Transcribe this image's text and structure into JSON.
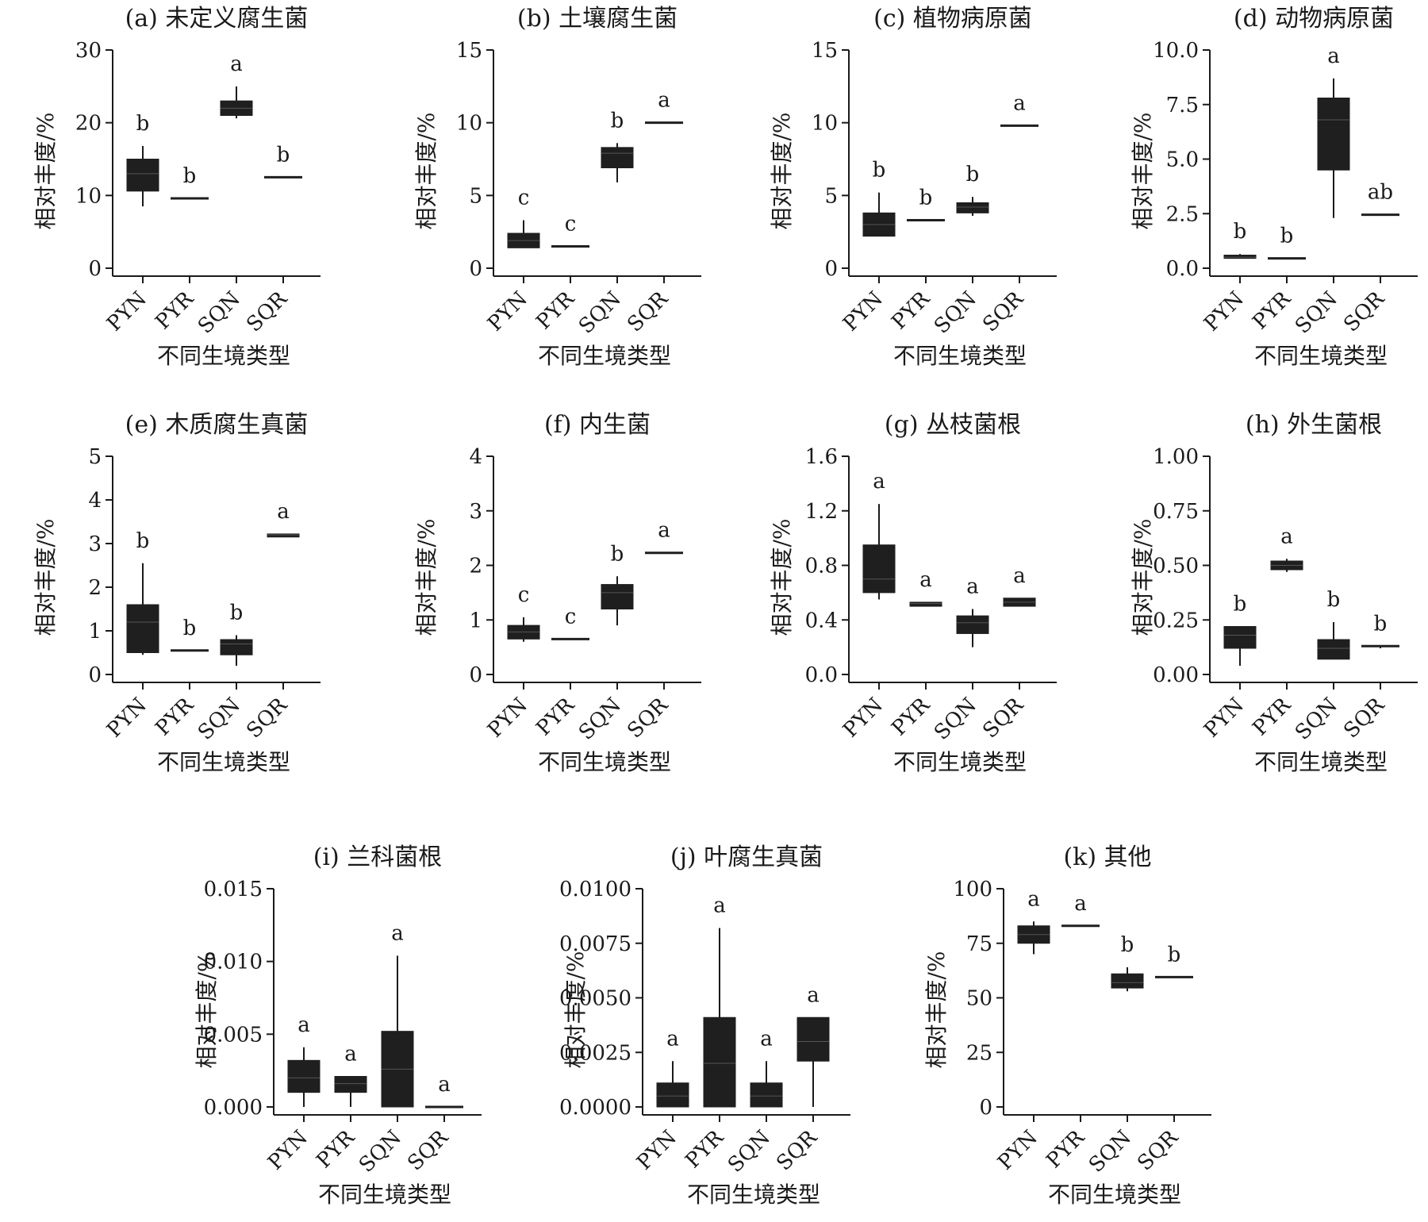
{
  "figure": {
    "colors": {
      "box_fill": "#1f1f1f",
      "axis": "#1a1a1a",
      "background": "#ffffff"
    }
  },
  "chart_data": [
    {
      "type": "box",
      "title": "(a) 未定义腐生菌",
      "xlabel": "不同生境类型",
      "ylabel": "相对丰度/%",
      "categories": [
        "PYN",
        "PYR",
        "SQN",
        "SQR"
      ],
      "ylim": [
        0,
        30
      ],
      "yticks": [
        0,
        10,
        20,
        30
      ],
      "ytick_labels": [
        "0",
        "10",
        "20",
        "30"
      ],
      "boxes": [
        {
          "min": 8.5,
          "q1": 10.6,
          "median": 13.0,
          "q3": 15.0,
          "max": 16.8
        },
        {
          "min": 9.6,
          "q1": 9.6,
          "median": 9.6,
          "q3": 9.6,
          "max": 9.6
        },
        {
          "min": 20.6,
          "q1": 21.0,
          "median": 22.0,
          "q3": 23.0,
          "max": 25.0
        },
        {
          "min": 12.5,
          "q1": 12.5,
          "median": 12.5,
          "q3": 12.5,
          "max": 12.5
        }
      ],
      "letters": [
        "b",
        "b",
        "a",
        "b"
      ]
    },
    {
      "type": "box",
      "title": "(b) 土壤腐生菌",
      "xlabel": "不同生境类型",
      "ylabel": "相对丰度/%",
      "categories": [
        "PYN",
        "PYR",
        "SQN",
        "SQR"
      ],
      "ylim": [
        0,
        15
      ],
      "yticks": [
        0,
        5,
        10,
        15
      ],
      "ytick_labels": [
        "0",
        "5",
        "10",
        "15"
      ],
      "boxes": [
        {
          "min": 1.4,
          "q1": 1.4,
          "median": 1.9,
          "q3": 2.4,
          "max": 3.3
        },
        {
          "min": 1.5,
          "q1": 1.5,
          "median": 1.5,
          "q3": 1.5,
          "max": 1.5
        },
        {
          "min": 5.9,
          "q1": 6.9,
          "median": 7.9,
          "q3": 8.3,
          "max": 8.6
        },
        {
          "min": 10.0,
          "q1": 10.0,
          "median": 10.0,
          "q3": 10.0,
          "max": 10.0
        }
      ],
      "letters": [
        "c",
        "c",
        "b",
        "a"
      ]
    },
    {
      "type": "box",
      "title": "(c) 植物病原菌",
      "xlabel": "不同生境类型",
      "ylabel": "相对丰度/%",
      "categories": [
        "PYN",
        "PYR",
        "SQN",
        "SQR"
      ],
      "ylim": [
        0,
        15
      ],
      "yticks": [
        0,
        5,
        10,
        15
      ],
      "ytick_labels": [
        "0",
        "5",
        "10",
        "15"
      ],
      "boxes": [
        {
          "min": 2.2,
          "q1": 2.2,
          "median": 3.0,
          "q3": 3.8,
          "max": 5.2
        },
        {
          "min": 3.3,
          "q1": 3.3,
          "median": 3.3,
          "q3": 3.3,
          "max": 3.3
        },
        {
          "min": 3.6,
          "q1": 3.8,
          "median": 4.2,
          "q3": 4.5,
          "max": 4.9
        },
        {
          "min": 9.8,
          "q1": 9.8,
          "median": 9.8,
          "q3": 9.8,
          "max": 9.8
        }
      ],
      "letters": [
        "b",
        "b",
        "b",
        "a"
      ]
    },
    {
      "type": "box",
      "title": "(d) 动物病原菌",
      "xlabel": "不同生境类型",
      "ylabel": "相对丰度/%",
      "categories": [
        "PYN",
        "PYR",
        "SQN",
        "SQR"
      ],
      "ylim": [
        0,
        10
      ],
      "yticks": [
        0,
        2.5,
        5,
        7.5,
        10
      ],
      "ytick_labels": [
        "0.0",
        "2.5",
        "5.0",
        "7.5",
        "10.0"
      ],
      "boxes": [
        {
          "min": 0.45,
          "q1": 0.45,
          "median": 0.5,
          "q3": 0.6,
          "max": 0.65
        },
        {
          "min": 0.45,
          "q1": 0.45,
          "median": 0.45,
          "q3": 0.45,
          "max": 0.45
        },
        {
          "min": 2.3,
          "q1": 4.5,
          "median": 6.8,
          "q3": 7.8,
          "max": 8.7
        },
        {
          "min": 2.45,
          "q1": 2.45,
          "median": 2.45,
          "q3": 2.45,
          "max": 2.45
        }
      ],
      "letters": [
        "b",
        "b",
        "a",
        "ab"
      ]
    },
    {
      "type": "box",
      "title": "(e) 木质腐生真菌",
      "xlabel": "不同生境类型",
      "ylabel": "相对丰度/%",
      "categories": [
        "PYN",
        "PYR",
        "SQN",
        "SQR"
      ],
      "ylim": [
        0,
        5
      ],
      "yticks": [
        0,
        1,
        2,
        3,
        4,
        5
      ],
      "ytick_labels": [
        "0",
        "1",
        "2",
        "3",
        "4",
        "5"
      ],
      "boxes": [
        {
          "min": 0.45,
          "q1": 0.5,
          "median": 1.2,
          "q3": 1.6,
          "max": 2.55
        },
        {
          "min": 0.55,
          "q1": 0.55,
          "median": 0.55,
          "q3": 0.55,
          "max": 0.55
        },
        {
          "min": 0.2,
          "q1": 0.45,
          "median": 0.7,
          "q3": 0.8,
          "max": 0.9
        },
        {
          "min": 3.15,
          "q1": 3.15,
          "median": 3.2,
          "q3": 3.22,
          "max": 3.22
        }
      ],
      "letters": [
        "b",
        "b",
        "b",
        "a"
      ]
    },
    {
      "type": "box",
      "title": "(f) 内生菌",
      "xlabel": "不同生境类型",
      "ylabel": "相对丰度/%",
      "categories": [
        "PYN",
        "PYR",
        "SQN",
        "SQR"
      ],
      "ylim": [
        0,
        4
      ],
      "yticks": [
        0,
        1,
        2,
        3,
        4
      ],
      "ytick_labels": [
        "0",
        "1",
        "2",
        "3",
        "4"
      ],
      "boxes": [
        {
          "min": 0.6,
          "q1": 0.65,
          "median": 0.78,
          "q3": 0.9,
          "max": 1.05
        },
        {
          "min": 0.65,
          "q1": 0.65,
          "median": 0.65,
          "q3": 0.65,
          "max": 0.65
        },
        {
          "min": 0.9,
          "q1": 1.2,
          "median": 1.5,
          "q3": 1.65,
          "max": 1.8
        },
        {
          "min": 2.23,
          "q1": 2.23,
          "median": 2.23,
          "q3": 2.23,
          "max": 2.23
        }
      ],
      "letters": [
        "c",
        "c",
        "b",
        "a"
      ]
    },
    {
      "type": "box",
      "title": "(g) 丛枝菌根",
      "xlabel": "不同生境类型",
      "ylabel": "相对丰度/%",
      "categories": [
        "PYN",
        "PYR",
        "SQN",
        "SQR"
      ],
      "ylim": [
        0,
        1.6
      ],
      "yticks": [
        0,
        0.4,
        0.8,
        1.2,
        1.6
      ],
      "ytick_labels": [
        "0.0",
        "0.4",
        "0.8",
        "1.2",
        "1.6"
      ],
      "boxes": [
        {
          "min": 0.55,
          "q1": 0.6,
          "median": 0.7,
          "q3": 0.95,
          "max": 1.25
        },
        {
          "min": 0.5,
          "q1": 0.5,
          "median": 0.52,
          "q3": 0.53,
          "max": 0.53
        },
        {
          "min": 0.2,
          "q1": 0.3,
          "median": 0.38,
          "q3": 0.43,
          "max": 0.48
        },
        {
          "min": 0.5,
          "q1": 0.5,
          "median": 0.53,
          "q3": 0.56,
          "max": 0.56
        }
      ],
      "letters": [
        "a",
        "a",
        "a",
        "a"
      ]
    },
    {
      "type": "box",
      "title": "(h) 外生菌根",
      "xlabel": "不同生境类型",
      "ylabel": "相对丰度/%",
      "categories": [
        "PYN",
        "PYR",
        "SQN",
        "SQR"
      ],
      "ylim": [
        0,
        1
      ],
      "yticks": [
        0,
        0.25,
        0.5,
        0.75,
        1
      ],
      "ytick_labels": [
        "0.00",
        "0.25",
        "0.50",
        "0.75",
        "1.00"
      ],
      "boxes": [
        {
          "min": 0.04,
          "q1": 0.12,
          "median": 0.18,
          "q3": 0.22,
          "max": 0.22
        },
        {
          "min": 0.47,
          "q1": 0.48,
          "median": 0.5,
          "q3": 0.52,
          "max": 0.53
        },
        {
          "min": 0.07,
          "q1": 0.07,
          "median": 0.12,
          "q3": 0.16,
          "max": 0.24
        },
        {
          "min": 0.12,
          "q1": 0.12,
          "median": 0.125,
          "q3": 0.13,
          "max": 0.13
        }
      ],
      "letters": [
        "b",
        "a",
        "b",
        "b"
      ]
    },
    {
      "type": "box",
      "title": "(i) 兰科菌根",
      "xlabel": "不同生境类型",
      "ylabel": "相对丰度/%",
      "categories": [
        "PYN",
        "PYR",
        "SQN",
        "SQR"
      ],
      "ylim": [
        0,
        0.015
      ],
      "yticks": [
        0,
        0.005,
        0.01,
        0.015
      ],
      "ytick_labels": [
        "0.000",
        "0.005",
        "0.010",
        "0.015"
      ],
      "boxes": [
        {
          "min": 0.0,
          "q1": 0.001,
          "median": 0.002,
          "q3": 0.0032,
          "max": 0.0041
        },
        {
          "min": 0.0,
          "q1": 0.001,
          "median": 0.0016,
          "q3": 0.0021,
          "max": 0.0021
        },
        {
          "min": 0.0,
          "q1": 0.0,
          "median": 0.0026,
          "q3": 0.0052,
          "max": 0.0104
        },
        {
          "min": 0.0,
          "q1": 0.0,
          "median": 0.0,
          "q3": 0.0,
          "max": 0.0
        }
      ],
      "letters": [
        "a",
        "a",
        "a",
        "a"
      ]
    },
    {
      "type": "box",
      "title": "(j) 叶腐生真菌",
      "xlabel": "不同生境类型",
      "ylabel": "相对丰度/%",
      "categories": [
        "PYN",
        "PYR",
        "SQN",
        "SQR"
      ],
      "ylim": [
        0,
        0.01
      ],
      "yticks": [
        0,
        0.0025,
        0.005,
        0.0075,
        0.01
      ],
      "ytick_labels": [
        "0.0000",
        "0.0025",
        "0.0050",
        "0.0075",
        "0.0100"
      ],
      "boxes": [
        {
          "min": 0.0,
          "q1": 0.0,
          "median": 0.0005,
          "q3": 0.0011,
          "max": 0.0021
        },
        {
          "min": 0.0,
          "q1": 0.0,
          "median": 0.002,
          "q3": 0.0041,
          "max": 0.0082
        },
        {
          "min": 0.0,
          "q1": 0.0,
          "median": 0.0005,
          "q3": 0.0011,
          "max": 0.0021
        },
        {
          "min": 0.0,
          "q1": 0.0021,
          "median": 0.003,
          "q3": 0.0041,
          "max": 0.0041
        }
      ],
      "letters": [
        "a",
        "a",
        "a",
        "a"
      ]
    },
    {
      "type": "box",
      "title": "(k) 其他",
      "xlabel": "不同生境类型",
      "ylabel": "相对丰度/%",
      "categories": [
        "PYN",
        "PYR",
        "SQN",
        "SQR"
      ],
      "ylim": [
        0,
        100
      ],
      "yticks": [
        0,
        25,
        50,
        75,
        100
      ],
      "ytick_labels": [
        "0",
        "25",
        "50",
        "75",
        "100"
      ],
      "boxes": [
        {
          "min": 70.0,
          "q1": 75.0,
          "median": 79.0,
          "q3": 83.0,
          "max": 85.0
        },
        {
          "min": 83.0,
          "q1": 83.0,
          "median": 83.0,
          "q3": 83.0,
          "max": 83.0
        },
        {
          "min": 53.0,
          "q1": 54.5,
          "median": 57.0,
          "q3": 61.0,
          "max": 64.0
        },
        {
          "min": 59.5,
          "q1": 59.5,
          "median": 59.5,
          "q3": 59.5,
          "max": 59.5
        }
      ],
      "letters": [
        "a",
        "a",
        "b",
        "b"
      ]
    }
  ]
}
